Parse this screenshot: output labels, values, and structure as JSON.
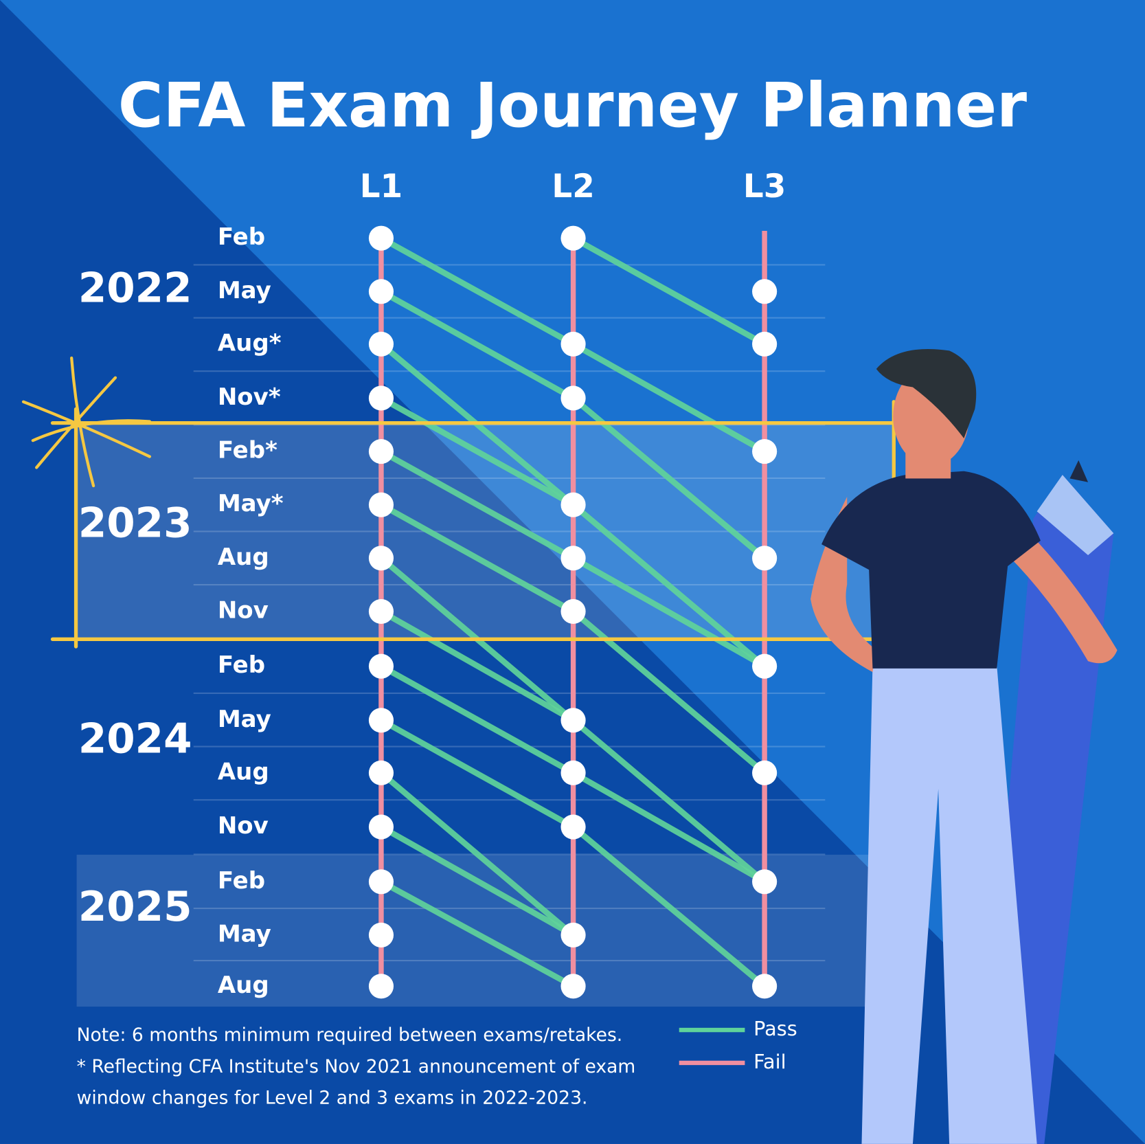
{
  "title": "CFA Exam Journey Planner",
  "levels": [
    "L1",
    "L2",
    "L3"
  ],
  "years": [
    {
      "year": "2022",
      "months": [
        "Feb",
        "May",
        "Aug*",
        "Nov*"
      ]
    },
    {
      "year": "2023",
      "months": [
        "Feb*",
        "May*",
        "Aug",
        "Nov"
      ]
    },
    {
      "year": "2024",
      "months": [
        "Feb",
        "May",
        "Aug",
        "Nov"
      ]
    },
    {
      "year": "2025",
      "months": [
        "Feb",
        "May",
        "Aug"
      ]
    }
  ],
  "legend": {
    "pass": "Pass",
    "fail": "Fail"
  },
  "notes": [
    "Note: 6 months minimum required between exams/retakes.",
    "* Reflecting CFA Institute's Nov 2021 announcement of exam",
    "window changes for Level 2 and 3 exams in 2022-2023."
  ]
}
